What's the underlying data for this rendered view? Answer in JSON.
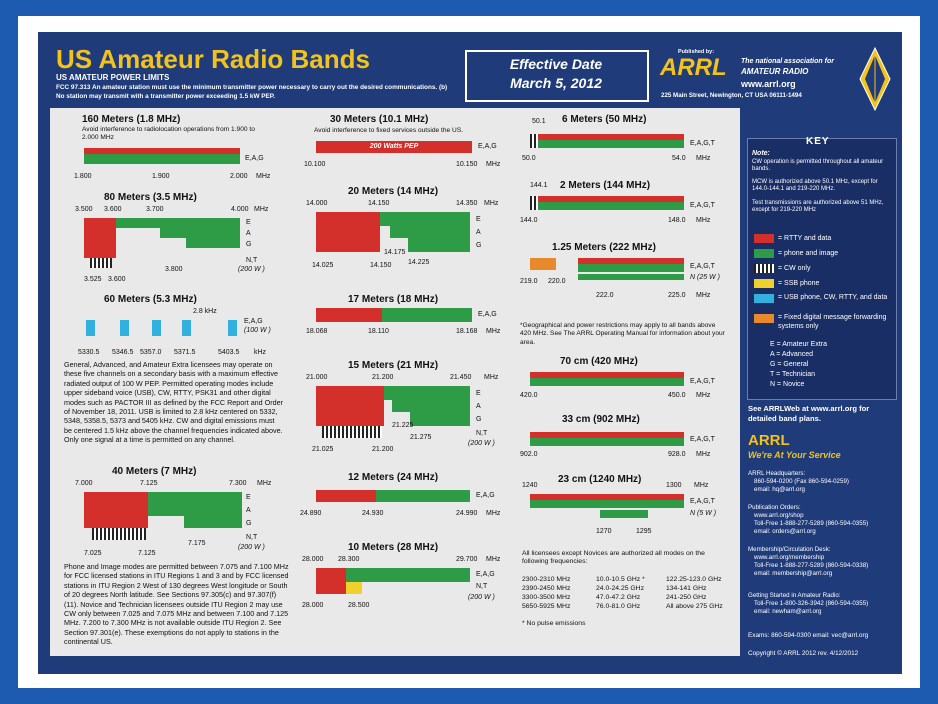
{
  "header": {
    "title": "US Amateur Radio Bands",
    "power_title": "US AMATEUR POWER LIMITS",
    "power_text": "FCC 97.313   An amateur station must use the minimum transmitter power necessary to carry out the desired communications.   (b) No station may transmit with a transmitter power exceeding 1.5 kW PEP.",
    "effective_label": "Effective Date",
    "effective_date": "March 5, 2012",
    "published_by": "Published by:",
    "arrl": "ARRL",
    "tagline1": "The national association for",
    "tagline2": "AMATEUR RADIO",
    "website": "www.arrl.org",
    "address": "225 Main Street, Newington, CT  USA  06111-1494"
  },
  "bands": {
    "m160": {
      "title": "160 Meters (1.8 MHz)",
      "note": "Avoid interference to radiolocation operations from 1.900 to 2.000 MHz",
      "classes": "E,A,G",
      "ticks": [
        "1.800",
        "1.900",
        "2.000",
        "MHz"
      ]
    },
    "m80": {
      "title": "80 Meters (3.5 MHz)",
      "top": [
        "3.500",
        "3.600",
        "3.700",
        "4.000",
        "MHz"
      ],
      "rows": [
        "E",
        "A",
        "G",
        "N,T"
      ],
      "power": "(200 W )",
      "bottom": [
        "3.525",
        "3.600",
        "3.800"
      ]
    },
    "m60": {
      "title": "60 Meters (5.3 MHz)",
      "span": "2.8 kHz",
      "classes": "E,A,G",
      "power": "(100 W )",
      "ticks": [
        "5330.5",
        "5346.5",
        "5357.0",
        "5371.5",
        "5403.5",
        "kHz"
      ],
      "text": "General, Advanced, and Amateur Extra licensees may operate on these five channels on a secondary basis with a maximum effective radiated output of 100 W PEP. Permitted operating modes include upper sideband voice (USB), CW, RTTY, PSK31 and other digital modes such as PACTOR III as defined by the FCC Report and Order of November 18, 2011. USB is limited to 2.8 kHz centered on 5332, 5348, 5358.5, 5373 and 5405 kHz. CW and digital emissions must be centered 1.5 kHz above the channel frequencies indicated above. Only one signal at a time is permitted on any channel."
    },
    "m40": {
      "title": "40 Meters (7 MHz)",
      "top": [
        "7.000",
        "7.125",
        "7.300",
        "MHz"
      ],
      "rows": [
        "E",
        "A",
        "G",
        "N,T"
      ],
      "power": "(200 W )",
      "bottom": [
        "7.025",
        "7.125",
        "7.175"
      ],
      "text": "Phone and Image modes are permitted between 7.075 and 7.100 MHz for FCC licensed stations in ITU Regions 1 and 3 and by FCC licensed stations in ITU Region 2 West of 130 degrees West longitude or South of 20 degrees North latitude. See Sections 97.305(c) and 97.307(f)(11). Novice and Technician licensees outside ITU Region 2 may use CW only between 7.025 and 7.075 MHz and between 7.100 and 7.125 MHz. 7.200 to 7.300 MHz is not available outside ITU Region 2. See Section 97.301(e). These exemptions do not apply to stations in the continental US."
    },
    "m30": {
      "title": "30 Meters (10.1 MHz)",
      "note": "Avoid interference to fixed services outside the US.",
      "inbar": "200 Watts PEP",
      "classes": "E,A,G",
      "ticks": [
        "10.100",
        "10.150",
        "MHz"
      ]
    },
    "m20": {
      "title": "20 Meters (14 MHz)",
      "top": [
        "14.000",
        "14.150",
        "14.350",
        "MHz"
      ],
      "rows": [
        "E",
        "A",
        "G"
      ],
      "bottom": [
        "14.025",
        "14.150",
        "14.175",
        "14.225"
      ]
    },
    "m17": {
      "title": "17 Meters (18 MHz)",
      "classes": "E,A,G",
      "ticks": [
        "18.068",
        "18.110",
        "18.168",
        "MHz"
      ]
    },
    "m15": {
      "title": "15 Meters (21 MHz)",
      "top": [
        "21.000",
        "21.200",
        "21.450",
        "MHz"
      ],
      "rows": [
        "E",
        "A",
        "G",
        "N,T"
      ],
      "power": "(200 W )",
      "bottom": [
        "21.025",
        "21.200",
        "21.225",
        "21.275"
      ]
    },
    "m12": {
      "title": "12 Meters (24 MHz)",
      "classes": "E,A,G",
      "ticks": [
        "24.890",
        "24.930",
        "24.990",
        "MHz"
      ]
    },
    "m10": {
      "title": "10 Meters (28 MHz)",
      "top": [
        "28.000",
        "28.300",
        "29.700",
        "MHz"
      ],
      "classes": "E,A,G",
      "nt": "N,T",
      "power": "(200 W )",
      "bottom": [
        "28.000",
        "28.500"
      ]
    },
    "m6": {
      "title": "6 Meters (50 MHz)",
      "classes": "E,A,G,T",
      "ticks": [
        "50.1",
        "50.0",
        "54.0",
        "MHz"
      ]
    },
    "m2": {
      "title": "2 Meters (144 MHz)",
      "classes": "E,A,G,T",
      "ticks": [
        "144.1",
        "144.0",
        "148.0",
        "MHz"
      ]
    },
    "m125": {
      "title": "1.25 Meters (222 MHz)",
      "classes": "E,A,G,T",
      "n": "N (25 W )",
      "ticks": [
        "219.0",
        "220.0",
        "222.0",
        "225.0",
        "MHz"
      ]
    },
    "geo_note": "*Geographical and power restrictions may apply to all bands above 420 MHz. See The ARRL Operating Manual for information about your area.",
    "cm70": {
      "title": "70 cm (420 MHz)",
      "classes": "E,A,G,T",
      "ticks": [
        "420.0",
        "450.0",
        "MHz"
      ]
    },
    "cm33": {
      "title": "33 cm (902 MHz)",
      "classes": "E,A,G,T",
      "ticks": [
        "902.0",
        "928.0",
        "MHz"
      ]
    },
    "cm23": {
      "title": "23 cm (1240 MHz)",
      "classes": "E,A,G,T",
      "n": "N (5 W )",
      "ticks": [
        "1240",
        "1300",
        "MHz",
        "1270",
        "1295"
      ]
    },
    "above": {
      "intro": "All licensees except Novices are authorized all modes on the following frequencies:",
      "rows": [
        [
          "2300-2310 MHz",
          "10.0-10.5 GHz *",
          "122.25-123.0 GHz"
        ],
        [
          "2390-2450 MHz",
          "24.0-24.25 GHz",
          "134-141 GHz"
        ],
        [
          "3300-3500 MHz",
          "47.0-47.2 GHz",
          "241-250 GHz"
        ],
        [
          "5650-5925 MHz",
          "76.0-81.0 GHz",
          "All above 275 GHz"
        ]
      ],
      "footnote": "* No pulse emissions"
    }
  },
  "key": {
    "title": "KEY",
    "note_label": "Note:",
    "notes": [
      "CW operation is permitted throughout all amateur bands.",
      "MCW is authorized above 50.1 MHz, except for 144.0-144.1 and 219-220 MHz.",
      "Test transmissions are authorized above 51 MHz, except for 219-220 MHz"
    ],
    "legend": [
      "= RTTY and data",
      "= phone and image",
      "= CW only",
      "= SSB phone",
      "= USB phone, CW, RTTY, and data",
      "= Fixed digital message forwarding systems only"
    ],
    "classes": [
      "E = Amateur Extra",
      "A = Advanced",
      "G = General",
      "T = Technician",
      "N = Novice"
    ],
    "web_note": "See ARRLWeb at www.arrl.org for detailed band plans.",
    "arrl": "ARRL",
    "service": "We're At Your Service",
    "hq": [
      "ARRL Headquarters:",
      "860-594-0200  (Fax 860-594-0259)",
      "email:  hq@arrl.org"
    ],
    "pubs": [
      "Publication Orders:",
      "www.arrl.org/shop",
      "Toll-Free 1-888-277-5289 (860-594-0355)",
      "email: orders@arrl.org"
    ],
    "members": [
      "Membership/Circulation Desk:",
      "www.arrl.org/membership",
      "Toll-Free 1-888-277-5289 (860-594-0338)",
      "email: membership@arrl.org"
    ],
    "start": [
      "Getting Started in Amateur Radio:",
      "Toll-Free 1-800-326-3942 (860-594-0355)",
      "email: newham@arrl.org"
    ],
    "exams": "Exams:  860-594-0300    email: vec@arrl.org",
    "copyright": "Copyright © ARRL 2012     rev. 4/12/2012"
  },
  "colors": {
    "red": "#d4302b",
    "green": "#2e9c46",
    "yellow": "#f0d02a",
    "cyan": "#32b1e0",
    "orange": "#e8892c",
    "poster": "#1f3b7a"
  }
}
